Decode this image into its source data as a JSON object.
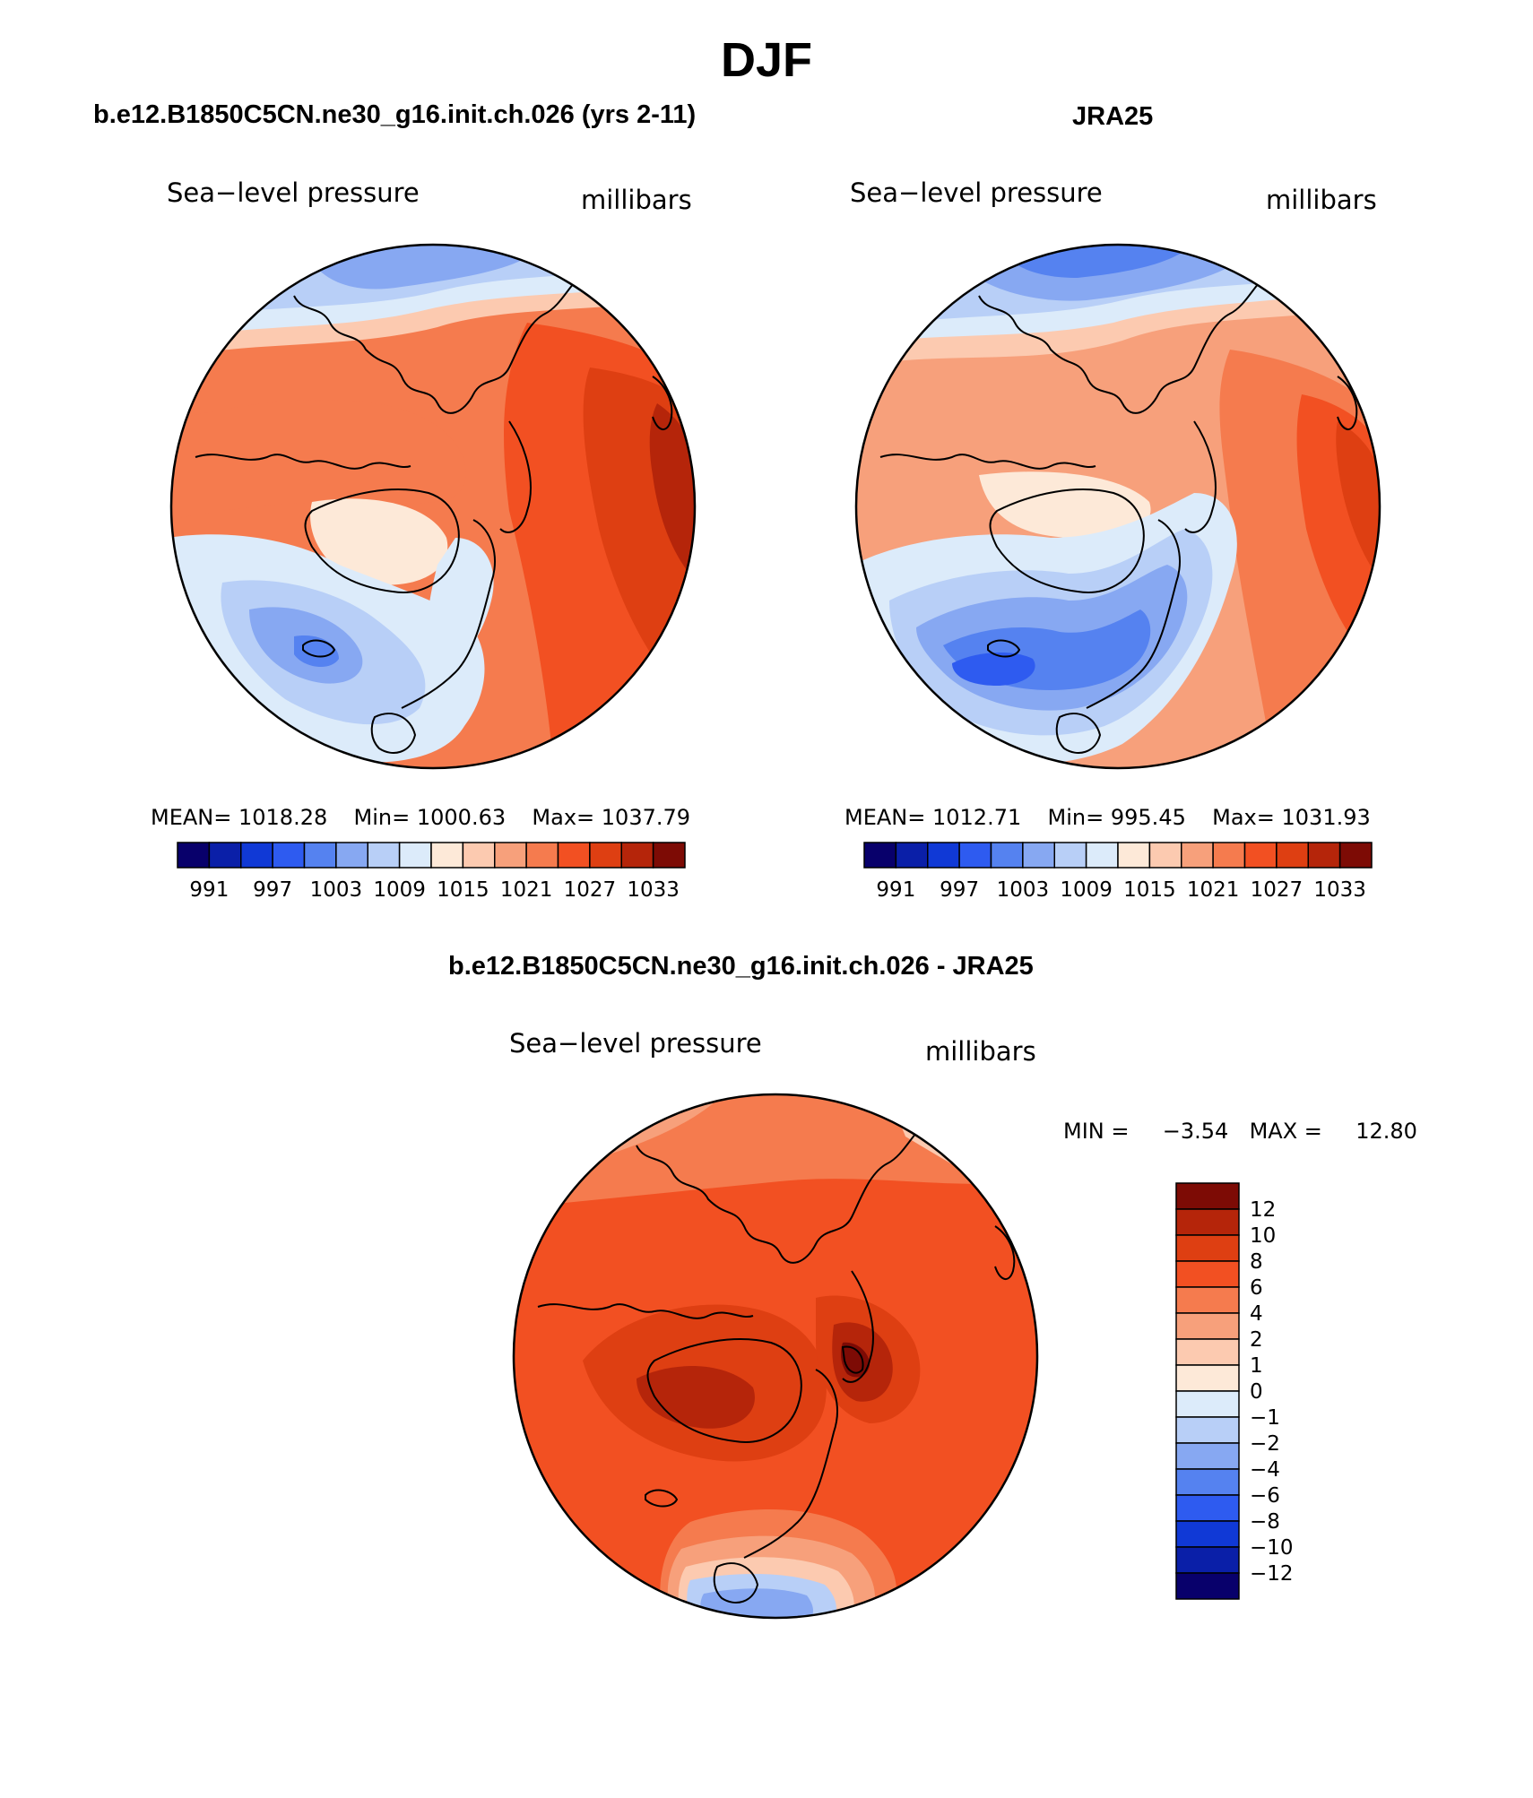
{
  "page": {
    "title": "DJF"
  },
  "panels": [
    {
      "title": "b.e12.B1850C5CN.ne30_g16.init.ch.026 (yrs 2-11)",
      "left_label": "Sea−level pressure",
      "right_label": "millibars",
      "stats": {
        "mean_label": "MEAN=",
        "mean": "1018.28",
        "min_label": "Min=",
        "min": "1000.63",
        "max_label": "Max=",
        "max": "1037.79"
      }
    },
    {
      "title": "JRA25",
      "left_label": "Sea−level pressure",
      "right_label": "millibars",
      "stats": {
        "mean_label": "MEAN=",
        "mean": "1012.71",
        "min_label": "Min=",
        "min": "995.45",
        "max_label": "Max=",
        "max": "1031.93"
      }
    },
    {
      "title": "b.e12.B1850C5CN.ne30_g16.init.ch.026 - JRA25",
      "left_label": "Sea−level pressure",
      "right_label": "millibars",
      "stats": {
        "min_label": "MIN =",
        "min": "−3.54",
        "max_label": "MAX =",
        "max": "12.80"
      }
    }
  ],
  "colorbar_abs": {
    "colors": [
      "#08006b",
      "#0a1fa8",
      "#1039d6",
      "#2e5bf0",
      "#5582f0",
      "#87a8f2",
      "#b8cff7",
      "#dcebfa",
      "#fde9d8",
      "#fccab0",
      "#f7a07b",
      "#f57b4e",
      "#f25022",
      "#de3f12",
      "#b5250a",
      "#7d0b05"
    ],
    "labels": [
      "991",
      "997",
      "1003",
      "1009",
      "1015",
      "1021",
      "1027",
      "1033"
    ]
  },
  "colorbar_diff": {
    "colors_top_to_bottom": [
      "#7d0b05",
      "#b5250a",
      "#de3f12",
      "#f25022",
      "#f57b4e",
      "#f7a07b",
      "#fccab0",
      "#fde9d8",
      "#dcebfa",
      "#b8cff7",
      "#87a8f2",
      "#5582f0",
      "#2e5bf0",
      "#1039d6",
      "#0a1fa8",
      "#08006b"
    ],
    "labels_top_to_bottom": [
      "12",
      "10",
      "8",
      "6",
      "4",
      "2",
      "1",
      "0",
      "−1",
      "−2",
      "−4",
      "−6",
      "−8",
      "−10",
      "−12"
    ]
  }
}
